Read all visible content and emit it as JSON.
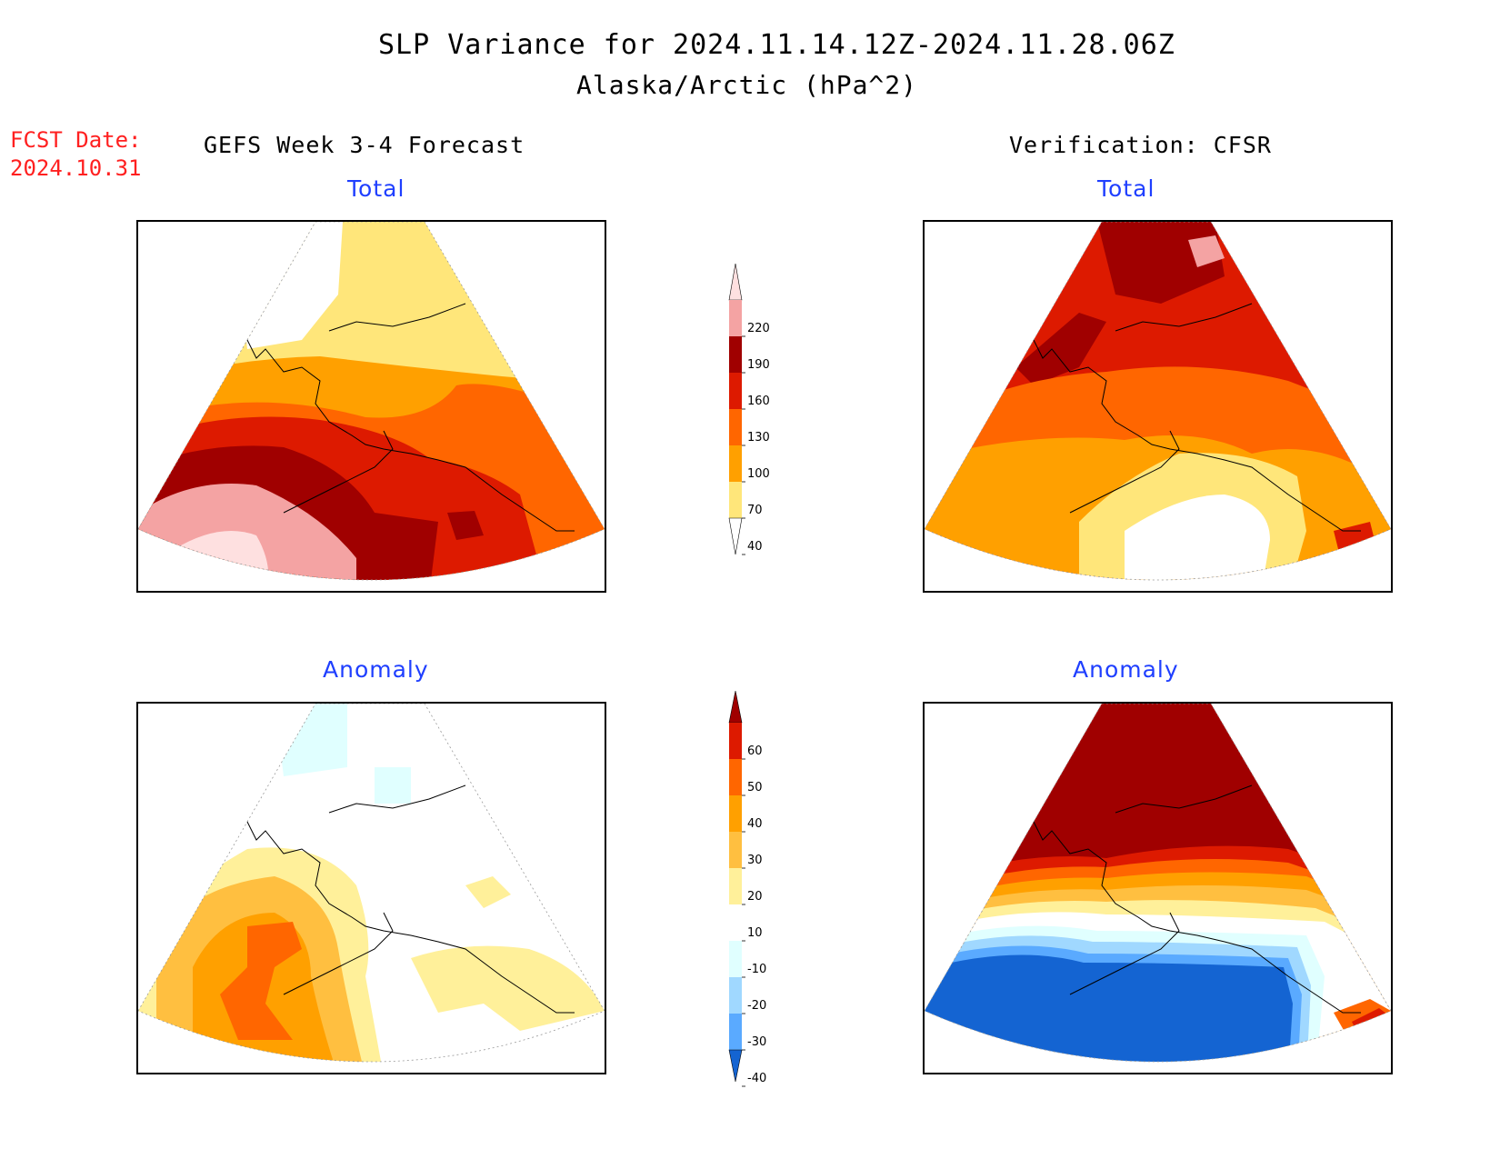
{
  "header": {
    "title": "SLP Variance for 2024.11.14.12Z-2024.11.28.06Z",
    "subtitle": "Alaska/Arctic (hPa^2)"
  },
  "fcst": {
    "label": "FCST Date:",
    "date": "2024.10.31"
  },
  "columns": {
    "left": "GEFS Week 3-4 Forecast",
    "right": "Verification: CFSR"
  },
  "panels": {
    "top_left_label": "Total",
    "top_right_label": "Total",
    "bottom_left_label": "Anomaly",
    "bottom_right_label": "Anomaly"
  },
  "colorbars": {
    "total": {
      "labels": [
        "220",
        "190",
        "160",
        "130",
        "100",
        "70",
        "40"
      ],
      "colors": [
        "#fee0e0",
        "#f4a3a3",
        "#a00000",
        "#dd1a00",
        "#ff6600",
        "#ffa000",
        "#ffe67a",
        "#ffffff"
      ]
    },
    "anomaly": {
      "labels": [
        "60",
        "50",
        "40",
        "30",
        "20",
        "10",
        "-10",
        "-20",
        "-30",
        "-40"
      ],
      "colors": [
        "#a00000",
        "#dd1a00",
        "#ff6600",
        "#ffa000",
        "#ffbf40",
        "#fff09a",
        "#ffffff",
        "#e0ffff",
        "#a0d8ff",
        "#5aaaff",
        "#1464d2"
      ]
    }
  },
  "map_colors": {
    "white": "#ffffff",
    "yellow": "#ffe67a",
    "orange": "#ffa000",
    "darkorange": "#ff6600",
    "red": "#dd1a00",
    "darkred": "#a00000",
    "pink": "#f4a3a3",
    "lightpink": "#fee0e0",
    "lightyellow": "#fff09a",
    "goldorange": "#ffbf40",
    "cyanlight": "#e0ffff",
    "skyblue": "#a0d8ff",
    "blue": "#5aaaff",
    "deepblue": "#1464d2"
  }
}
